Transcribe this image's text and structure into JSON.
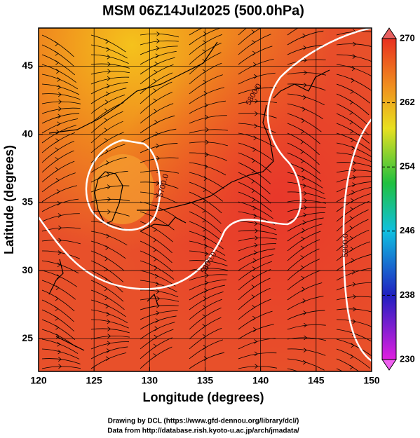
{
  "chart_data": {
    "type": "map",
    "title": "MSM 06Z14Jul2025 (500.0hPa)",
    "xlabel": "Longitude (degrees)",
    "ylabel": "Latitude  (degrees)",
    "xlim": [
      120,
      150
    ],
    "xticks": [
      120,
      125,
      130,
      135,
      140,
      145,
      150
    ],
    "ylim": [
      22.6,
      47.8
    ],
    "yticks": [
      25,
      30,
      35,
      40,
      45
    ],
    "grid": true,
    "colorbar": {
      "lim": [
        230,
        270
      ],
      "ticks": [
        230,
        238,
        246,
        254,
        262,
        270
      ]
    },
    "contour_labels": [
      "5700.0",
      "5800.0",
      "5800.0",
      "5900.0"
    ],
    "footer": [
      "Drawing by DCL (https://www.gfd-dennou.org/library/dcl/)",
      "Data from http://database.rish.kyoto-u.ac.jp/arch/jmadata/"
    ]
  }
}
